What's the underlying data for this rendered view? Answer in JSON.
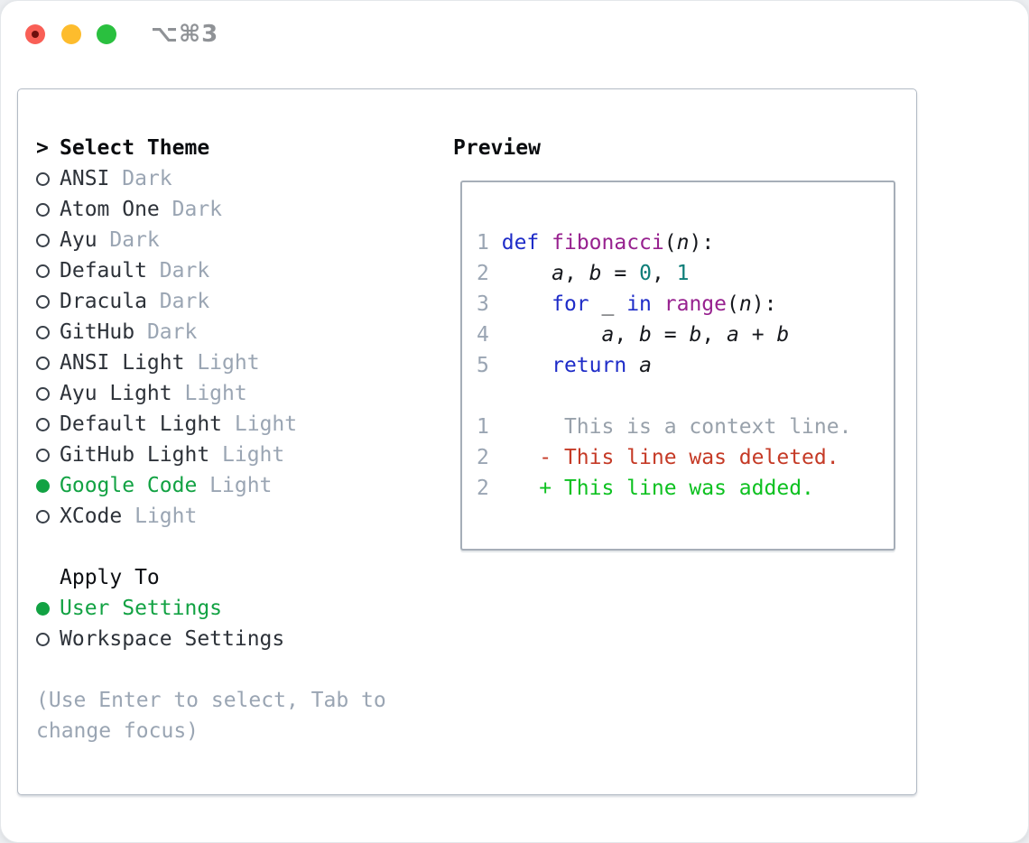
{
  "window": {
    "title": "⌥⌘3",
    "traffic_lights": [
      {
        "name": "close"
      },
      {
        "name": "minimize"
      },
      {
        "name": "zoom"
      }
    ]
  },
  "theme_picker": {
    "prompt": ">",
    "title": "Select Theme",
    "items": [
      {
        "name": "ANSI",
        "tag": "Dark",
        "selected": false
      },
      {
        "name": "Atom One",
        "tag": "Dark",
        "selected": false
      },
      {
        "name": "Ayu",
        "tag": "Dark",
        "selected": false
      },
      {
        "name": "Default",
        "tag": "Dark",
        "selected": false
      },
      {
        "name": "Dracula",
        "tag": "Dark",
        "selected": false
      },
      {
        "name": "GitHub",
        "tag": "Dark",
        "selected": false
      },
      {
        "name": "ANSI Light",
        "tag": "Light",
        "selected": false
      },
      {
        "name": "Ayu Light",
        "tag": "Light",
        "selected": false
      },
      {
        "name": "Default Light",
        "tag": "Light",
        "selected": false
      },
      {
        "name": "GitHub Light",
        "tag": "Light",
        "selected": false
      },
      {
        "name": "Google Code",
        "tag": "Light",
        "selected": true
      },
      {
        "name": "XCode",
        "tag": "Light",
        "selected": false
      }
    ]
  },
  "apply_to": {
    "title": "Apply To",
    "options": [
      {
        "label": "User Settings",
        "selected": true
      },
      {
        "label": "Workspace Settings",
        "selected": false
      }
    ]
  },
  "help_text": "(Use Enter to select, Tab to change focus)",
  "preview": {
    "title": "Preview",
    "lines": [
      {
        "segs": [
          [
            "lineno",
            "1"
          ],
          [
            "plain",
            " "
          ],
          [
            "keyword",
            "def"
          ],
          [
            "plain",
            " "
          ],
          [
            "function",
            "fibonacci"
          ],
          [
            "plain",
            "("
          ],
          [
            "variable",
            "n"
          ],
          [
            "plain",
            "):"
          ]
        ]
      },
      {
        "segs": [
          [
            "lineno",
            "2"
          ],
          [
            "plain",
            "     "
          ],
          [
            "variable",
            "a"
          ],
          [
            "plain",
            ", "
          ],
          [
            "variable",
            "b"
          ],
          [
            "plain",
            " = "
          ],
          [
            "number",
            "0"
          ],
          [
            "plain",
            ", "
          ],
          [
            "number",
            "1"
          ]
        ]
      },
      {
        "segs": [
          [
            "lineno",
            "3"
          ],
          [
            "plain",
            "     "
          ],
          [
            "keyword",
            "for"
          ],
          [
            "plain",
            " _ "
          ],
          [
            "keyword",
            "in"
          ],
          [
            "plain",
            " "
          ],
          [
            "function",
            "range"
          ],
          [
            "plain",
            "("
          ],
          [
            "variable",
            "n"
          ],
          [
            "plain",
            "):"
          ]
        ]
      },
      {
        "segs": [
          [
            "lineno",
            "4"
          ],
          [
            "plain",
            "         "
          ],
          [
            "variable",
            "a"
          ],
          [
            "plain",
            ", "
          ],
          [
            "variable",
            "b"
          ],
          [
            "plain",
            " = "
          ],
          [
            "variable",
            "b"
          ],
          [
            "plain",
            ", "
          ],
          [
            "variable",
            "a"
          ],
          [
            "plain",
            " + "
          ],
          [
            "variable",
            "b"
          ]
        ]
      },
      {
        "segs": [
          [
            "lineno",
            "5"
          ],
          [
            "plain",
            "     "
          ],
          [
            "keyword",
            "return"
          ],
          [
            "plain",
            " "
          ],
          [
            "variable",
            "a"
          ]
        ]
      },
      {
        "segs": []
      },
      {
        "segs": [
          [
            "lineno",
            "1"
          ],
          [
            "context",
            "      This is a context line."
          ]
        ]
      },
      {
        "segs": [
          [
            "lineno",
            "2"
          ],
          [
            "plain",
            "    "
          ],
          [
            "deleted",
            "- This line was deleted."
          ]
        ]
      },
      {
        "segs": [
          [
            "lineno",
            "2"
          ],
          [
            "plain",
            "    "
          ],
          [
            "added",
            "+ This line was added."
          ]
        ]
      }
    ]
  },
  "colors": {
    "accent_green": "#12a243",
    "keyword_blue": "#1e2cc8",
    "function_purple": "#97218f",
    "number_teal": "#0d7d78",
    "deleted_red": "#c53a26",
    "added_green": "#0dc120",
    "muted_gray": "#9aa5b3",
    "traffic_red": "#f95f56",
    "traffic_yellow": "#fdbc2d",
    "traffic_green": "#2ac03f"
  }
}
